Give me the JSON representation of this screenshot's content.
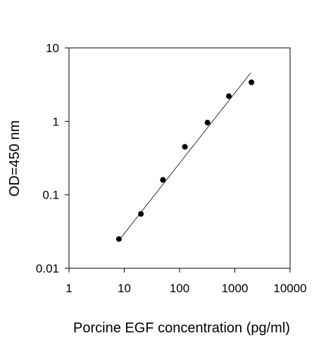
{
  "chart_data": {
    "type": "scatter",
    "xlabel": "Porcine EGF concentration (pg/ml)",
    "ylabel": "OD=450 nm",
    "x_scale": "log",
    "y_scale": "log",
    "xlim": [
      1,
      10000
    ],
    "ylim": [
      0.01,
      10
    ],
    "x_ticks": [
      "1",
      "10",
      "100",
      "1000",
      "10000"
    ],
    "y_ticks": [
      "0.01",
      "0.1",
      "1",
      "10"
    ],
    "grid": false,
    "point_color": "#000000",
    "points": [
      {
        "x": 8,
        "y": 0.025
      },
      {
        "x": 20,
        "y": 0.055
      },
      {
        "x": 50,
        "y": 0.16
      },
      {
        "x": 125,
        "y": 0.45
      },
      {
        "x": 320,
        "y": 0.96
      },
      {
        "x": 780,
        "y": 2.2
      },
      {
        "x": 2000,
        "y": 3.4
      }
    ],
    "fit_line": {
      "x": [
        8,
        1950
      ],
      "y": [
        0.024,
        4.6
      ]
    }
  }
}
